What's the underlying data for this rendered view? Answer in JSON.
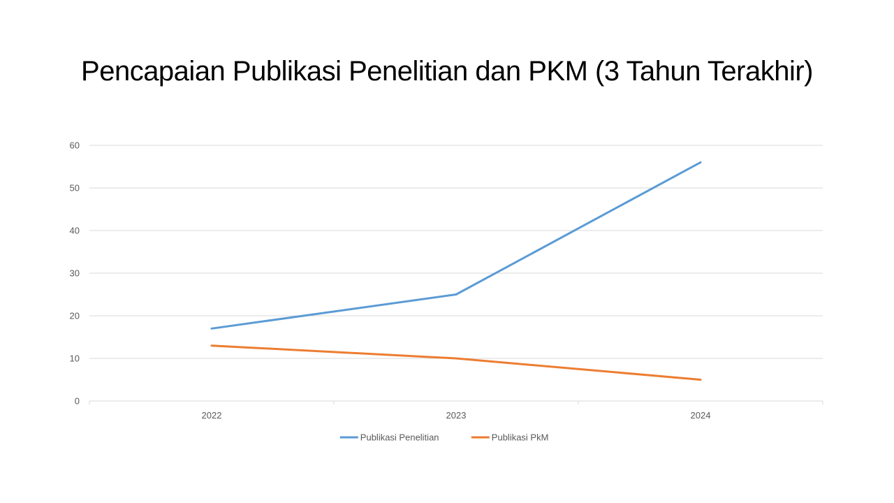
{
  "chart_data": {
    "type": "line",
    "title": "Pencapaian Publikasi Penelitian dan PKM (3 Tahun Terakhir)",
    "categories": [
      "2022",
      "2023",
      "2024"
    ],
    "series": [
      {
        "name": "Publikasi Penelitian",
        "values": [
          17,
          25,
          56
        ],
        "color": "#5b9bd5"
      },
      {
        "name": "Publikasi PkM",
        "values": [
          13,
          10,
          5
        ],
        "color": "#ed7d31"
      }
    ],
    "yticks": [
      "0",
      "10",
      "20",
      "30",
      "40",
      "50",
      "60"
    ],
    "ylim": [
      0,
      60
    ],
    "grid": true,
    "legend_position": "bottom",
    "gridline_color": "#d9d9d9",
    "axis_color": "#d9d9d9"
  }
}
